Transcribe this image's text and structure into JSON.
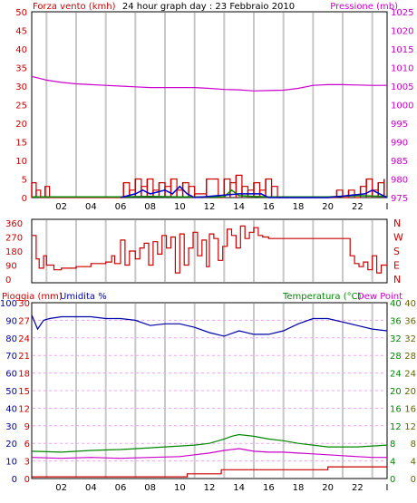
{
  "header": {
    "title": "24 hour graph day : 23 Febbraio 2010",
    "left_label": "Forza vento (kmh)",
    "right_label": "Pressione (mb)"
  },
  "colors": {
    "wind": "#cc0000",
    "gust": "#0000cc",
    "green": "#008800",
    "pressure": "#cc00cc",
    "humidity": "#0000aa",
    "rain": "#cc0000",
    "dew": "#cc00cc",
    "grid": "#c8c8c8",
    "frame": "#000000"
  },
  "chart_data": [
    {
      "type": "line",
      "panel": "wind-pressure",
      "title": "24 hour graph day : 23 Febbraio 2010",
      "ylabel": "Forza vento (kmh)",
      "ylabel_right": "Pressione (mb)",
      "x_ticks": [
        "02",
        "04",
        "06",
        "08",
        "10",
        "12",
        "14",
        "16",
        "18",
        "20",
        "22",
        "I"
      ],
      "ylim": [
        0,
        50
      ],
      "y_ticks": [
        "0",
        "5",
        "10",
        "15",
        "20",
        "25",
        "30",
        "35",
        "40",
        "45",
        "50"
      ],
      "ylim_right": [
        975,
        1025
      ],
      "y_ticks_right": [
        "975",
        "980",
        "985",
        "990",
        "995",
        "1000",
        "1005",
        "1010",
        "1015",
        "1020",
        "1025"
      ],
      "series": [
        {
          "name": "Pressione (mb)",
          "axis": "right",
          "x": [
            0,
            1,
            2,
            3,
            4,
            5,
            6,
            7,
            8,
            9,
            10,
            11,
            12,
            13,
            14,
            15,
            16,
            17,
            18,
            19,
            20,
            21,
            22,
            23,
            24
          ],
          "values": [
            1007.6,
            1006.6,
            1006.0,
            1005.6,
            1005.4,
            1005.2,
            1005.0,
            1004.8,
            1004.6,
            1004.6,
            1004.6,
            1004.6,
            1004.4,
            1004.1,
            1004.0,
            1003.7,
            1003.8,
            1003.9,
            1004.4,
            1005.2,
            1005.4,
            1005.4,
            1005.3,
            1005.2,
            1005.2
          ]
        },
        {
          "name": "Forza vento (kmh)",
          "axis": "left",
          "x": [
            0,
            0.3,
            0.6,
            0.9,
            1.2,
            2.5,
            3.2,
            6.2,
            6.6,
            7.0,
            7.4,
            7.8,
            8.2,
            8.6,
            9.0,
            9.4,
            9.8,
            10.2,
            10.6,
            11.0,
            11.8,
            12.6,
            13.0,
            13.4,
            13.8,
            14.2,
            14.6,
            15.0,
            15.4,
            15.8,
            16.2,
            16.6,
            20.2,
            20.6,
            21.0,
            21.4,
            21.8,
            22.2,
            22.6,
            23.0,
            23.4,
            23.8
          ],
          "values": [
            4,
            2,
            0,
            3,
            0,
            0,
            0,
            4,
            2,
            5,
            3,
            5,
            2,
            4,
            3,
            5,
            2,
            4,
            3,
            1,
            5,
            0,
            5,
            4,
            6,
            3,
            2,
            4,
            2,
            5,
            3,
            0,
            0,
            2,
            0,
            2,
            0,
            3,
            5,
            2,
            4,
            5
          ]
        },
        {
          "name": "",
          "axis": "left",
          "x": [
            0,
            6,
            8,
            10,
            13,
            13.5,
            14,
            15,
            16,
            18,
            20,
            22,
            24
          ],
          "values": [
            0.2,
            0.2,
            0.3,
            0.2,
            0.2,
            2,
            0.5,
            0.3,
            0.2,
            0.2,
            0.2,
            0.5,
            0.3
          ]
        },
        {
          "name": "",
          "axis": "left",
          "x": [
            6,
            7,
            7.5,
            8,
            9,
            9.5,
            10,
            10.5,
            11,
            14,
            15.5,
            16,
            20,
            22.5,
            23,
            23.5,
            24
          ],
          "values": [
            0,
            1,
            2,
            1,
            2,
            1,
            3,
            1,
            0,
            1,
            1,
            0,
            0,
            1,
            2,
            1,
            0
          ]
        }
      ]
    },
    {
      "type": "line",
      "panel": "wind-direction",
      "y_ticks": [
        "0",
        "90",
        "180",
        "270",
        "360"
      ],
      "ylim": [
        0,
        360
      ],
      "y_ticks_right": [
        "N",
        "E",
        "S",
        "W",
        "N"
      ],
      "x_ticks": [],
      "series": [
        {
          "name": "",
          "x": [
            0,
            0.3,
            0.5,
            0.8,
            1.0,
            1.5,
            2.0,
            3.0,
            4.0,
            5.0,
            5.4,
            5.6,
            6.0,
            6.3,
            6.6,
            7.0,
            7.3,
            7.6,
            7.9,
            8.2,
            8.5,
            8.8,
            9.1,
            9.4,
            9.7,
            10.0,
            10.3,
            10.6,
            10.9,
            11.2,
            11.5,
            11.8,
            12.0,
            12.3,
            12.6,
            12.9,
            13.2,
            13.5,
            13.8,
            14.1,
            14.4,
            14.7,
            15.0,
            15.3,
            15.6,
            16.0,
            17.0,
            18.0,
            19.0,
            20.0,
            21.0,
            21.5,
            21.8,
            22.1,
            22.4,
            22.7,
            23.0,
            23.3,
            23.6,
            24.0
          ],
          "values": [
            280,
            130,
            70,
            150,
            90,
            60,
            70,
            80,
            100,
            110,
            150,
            100,
            250,
            90,
            180,
            130,
            200,
            230,
            90,
            240,
            160,
            280,
            200,
            270,
            40,
            290,
            90,
            200,
            300,
            150,
            250,
            80,
            290,
            260,
            120,
            210,
            320,
            280,
            200,
            340,
            260,
            300,
            330,
            280,
            270,
            260,
            260,
            260,
            260,
            260,
            260,
            150,
            100,
            80,
            110,
            60,
            150,
            40,
            90,
            100
          ]
        }
      ]
    },
    {
      "type": "line",
      "panel": "rain-humidity-temperature",
      "ylabel": "Pioggia (mm)",
      "ylabel_mid": "Umidita %",
      "ylabel_right": "Temperatura (°C)",
      "legend": "Dew Point",
      "x_ticks": [
        "02",
        "04",
        "06",
        "08",
        "10",
        "12",
        "14",
        "16",
        "18",
        "20",
        "22",
        "I"
      ],
      "y_ticks_humidity": [
        "0",
        "10",
        "20",
        "30",
        "40",
        "50",
        "60",
        "70",
        "80",
        "90",
        "100"
      ],
      "y_ticks_rain": [
        "0",
        "3",
        "6",
        "9",
        "12",
        "15",
        "18",
        "21",
        "24",
        "27",
        "30"
      ],
      "ylim_rain": [
        0,
        30
      ],
      "ylim_humidity": [
        0,
        100
      ],
      "y_ticks_temp_outer": [
        "0",
        "4",
        "8",
        "12",
        "16",
        "20",
        "24",
        "28",
        "32",
        "36",
        "40"
      ],
      "y_ticks_temp_inner": [
        "0",
        "4",
        "8",
        "12",
        "16",
        "20",
        "24",
        "28",
        "32",
        "36",
        "40"
      ],
      "ylim_temp": [
        0,
        40
      ],
      "series": [
        {
          "name": "Umidita %",
          "axis": "humidity",
          "x": [
            0,
            0.4,
            0.8,
            1.2,
            2,
            3,
            4,
            5,
            6,
            7,
            8,
            9,
            10,
            11,
            12,
            13,
            14,
            15,
            16,
            17,
            18,
            19,
            20,
            21,
            22,
            23,
            24
          ],
          "values": [
            93,
            85,
            90,
            91,
            92,
            92,
            92,
            91,
            91,
            90,
            87,
            88,
            88,
            86,
            83,
            81,
            84,
            82,
            82,
            84,
            88,
            91,
            91,
            89,
            87,
            85,
            84
          ]
        },
        {
          "name": "Temperatura (°C)",
          "axis": "temp",
          "x": [
            0,
            2,
            4,
            6,
            8,
            10,
            11,
            12,
            13,
            13.5,
            14,
            15,
            16,
            17,
            18,
            19,
            20,
            21,
            22,
            23,
            24
          ],
          "values": [
            6.2,
            6.0,
            6.4,
            6.6,
            7.0,
            7.4,
            7.6,
            8.0,
            9.0,
            9.6,
            10.0,
            9.6,
            9.0,
            8.6,
            8.0,
            7.6,
            7.2,
            7.2,
            7.2,
            7.4,
            7.6
          ]
        },
        {
          "name": "Dew Point",
          "axis": "temp",
          "x": [
            0,
            2,
            4,
            6,
            8,
            10,
            11,
            12,
            13,
            14,
            15,
            16,
            17,
            18,
            19,
            20,
            21,
            22,
            23,
            24
          ],
          "values": [
            4.8,
            4.6,
            4.8,
            4.6,
            4.8,
            5.0,
            5.4,
            5.8,
            6.4,
            6.8,
            6.2,
            6.0,
            6.0,
            5.8,
            5.6,
            5.4,
            5.2,
            5.0,
            4.8,
            4.8
          ]
        },
        {
          "name": "Pioggia (mm)",
          "axis": "rain",
          "x": [
            0,
            10,
            10.5,
            12,
            12.8,
            18,
            20,
            22,
            24
          ],
          "values": [
            0.3,
            0.3,
            0.8,
            0.8,
            1.5,
            1.5,
            2.0,
            2.0,
            2.0
          ]
        }
      ]
    }
  ]
}
